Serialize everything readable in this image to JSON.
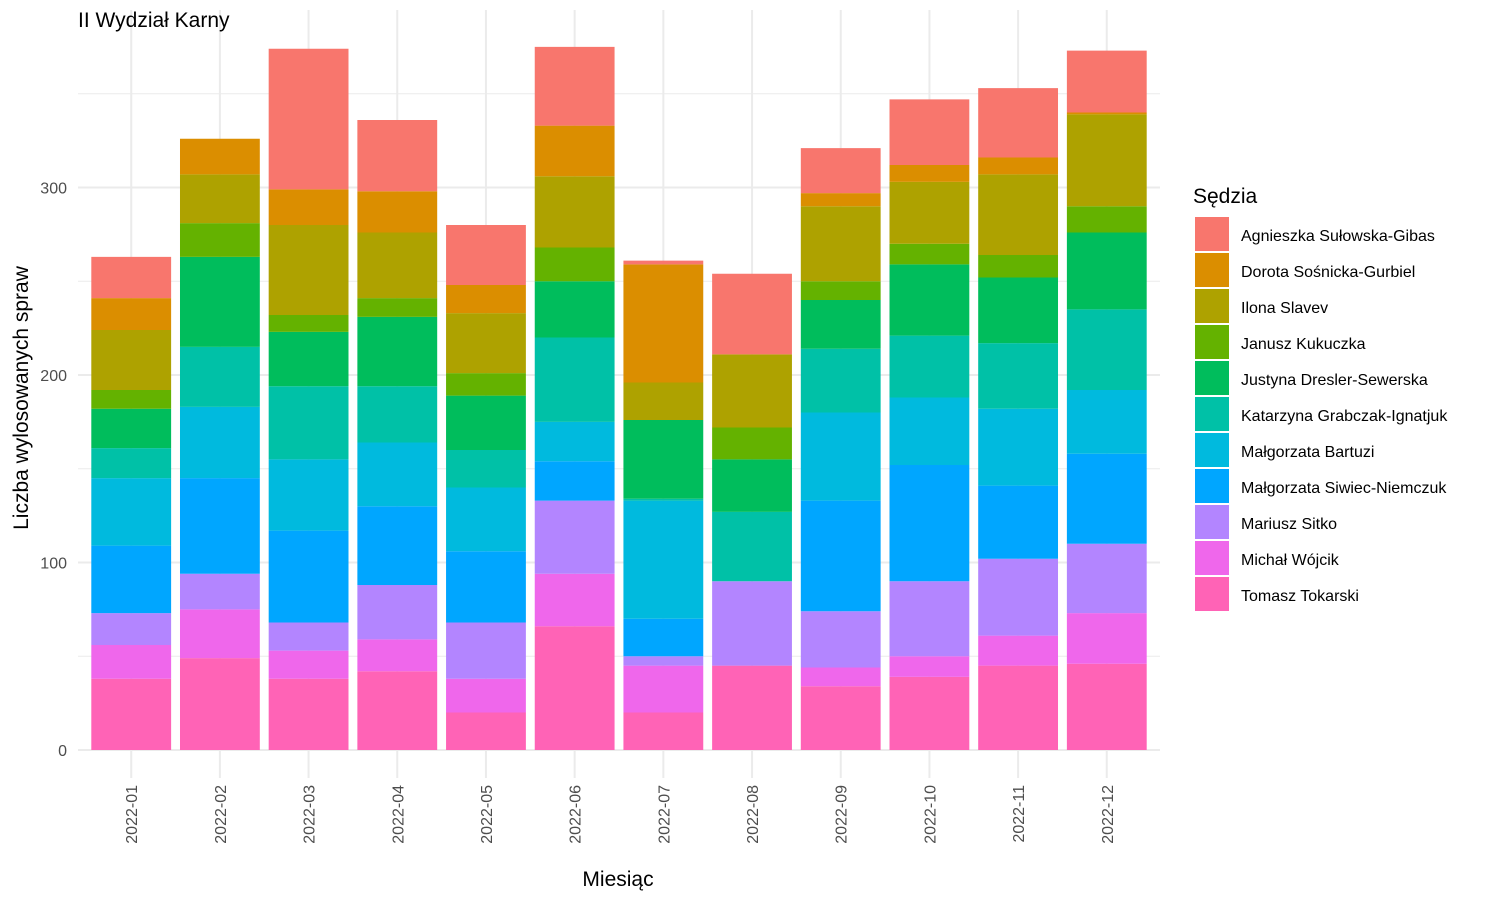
{
  "chart_data": {
    "type": "bar",
    "stacked": true,
    "title": "II Wydział Karny",
    "xlabel": "Miesiąc",
    "ylabel": "Liczba wylosowanych spraw",
    "ylim": [
      0,
      385
    ],
    "yticks": [
      0,
      100,
      200,
      300
    ],
    "grid": true,
    "legend_title": "Sędzia",
    "legend_position": "right",
    "categories": [
      "2022-01",
      "2022-02",
      "2022-03",
      "2022-04",
      "2022-05",
      "2022-06",
      "2022-07",
      "2022-08",
      "2022-09",
      "2022-10",
      "2022-11",
      "2022-12"
    ],
    "series": [
      {
        "name": "Agnieszka Sułowska-Gibas",
        "color": "#F8766D",
        "values": [
          22,
          0,
          75,
          38,
          32,
          42,
          2,
          43,
          24,
          35,
          37,
          33
        ]
      },
      {
        "name": "Dorota Sośnicka-Gurbiel",
        "color": "#DB8E00",
        "values": [
          17,
          19,
          19,
          22,
          15,
          27,
          63,
          0,
          7,
          9,
          9,
          1
        ]
      },
      {
        "name": "Ilona Slavev",
        "color": "#AEA200",
        "values": [
          32,
          26,
          48,
          35,
          32,
          38,
          20,
          39,
          40,
          33,
          43,
          49
        ]
      },
      {
        "name": "Janusz Kukuczka",
        "color": "#64B200",
        "values": [
          10,
          18,
          9,
          10,
          12,
          18,
          0,
          17,
          10,
          11,
          12,
          14
        ]
      },
      {
        "name": "Justyna Dresler-Sewerska",
        "color": "#00BD5C",
        "values": [
          21,
          48,
          29,
          37,
          29,
          30,
          42,
          28,
          26,
          38,
          35,
          41
        ]
      },
      {
        "name": "Katarzyna Grabczak-Ignatjuk",
        "color": "#00C1A7",
        "values": [
          16,
          32,
          39,
          30,
          20,
          45,
          1,
          37,
          34,
          33,
          35,
          43
        ]
      },
      {
        "name": "Małgorzata Bartuzi",
        "color": "#00BADE",
        "values": [
          36,
          38,
          38,
          34,
          34,
          21,
          63,
          0,
          47,
          36,
          41,
          34
        ]
      },
      {
        "name": "Małgorzata Siwiec-Niemczuk",
        "color": "#00A6FF",
        "values": [
          36,
          51,
          49,
          42,
          38,
          21,
          20,
          0,
          59,
          62,
          39,
          48
        ]
      },
      {
        "name": "Mariusz Sitko",
        "color": "#B385FF",
        "values": [
          17,
          19,
          15,
          29,
          30,
          39,
          5,
          45,
          30,
          40,
          41,
          37
        ]
      },
      {
        "name": "Michał Wójcik",
        "color": "#EF67EB",
        "values": [
          18,
          26,
          15,
          17,
          18,
          28,
          25,
          0,
          10,
          11,
          16,
          27
        ]
      },
      {
        "name": "Tomasz Tokarski",
        "color": "#FF63B6",
        "values": [
          38,
          49,
          38,
          42,
          20,
          66,
          20,
          45,
          34,
          39,
          45,
          46
        ]
      }
    ]
  }
}
